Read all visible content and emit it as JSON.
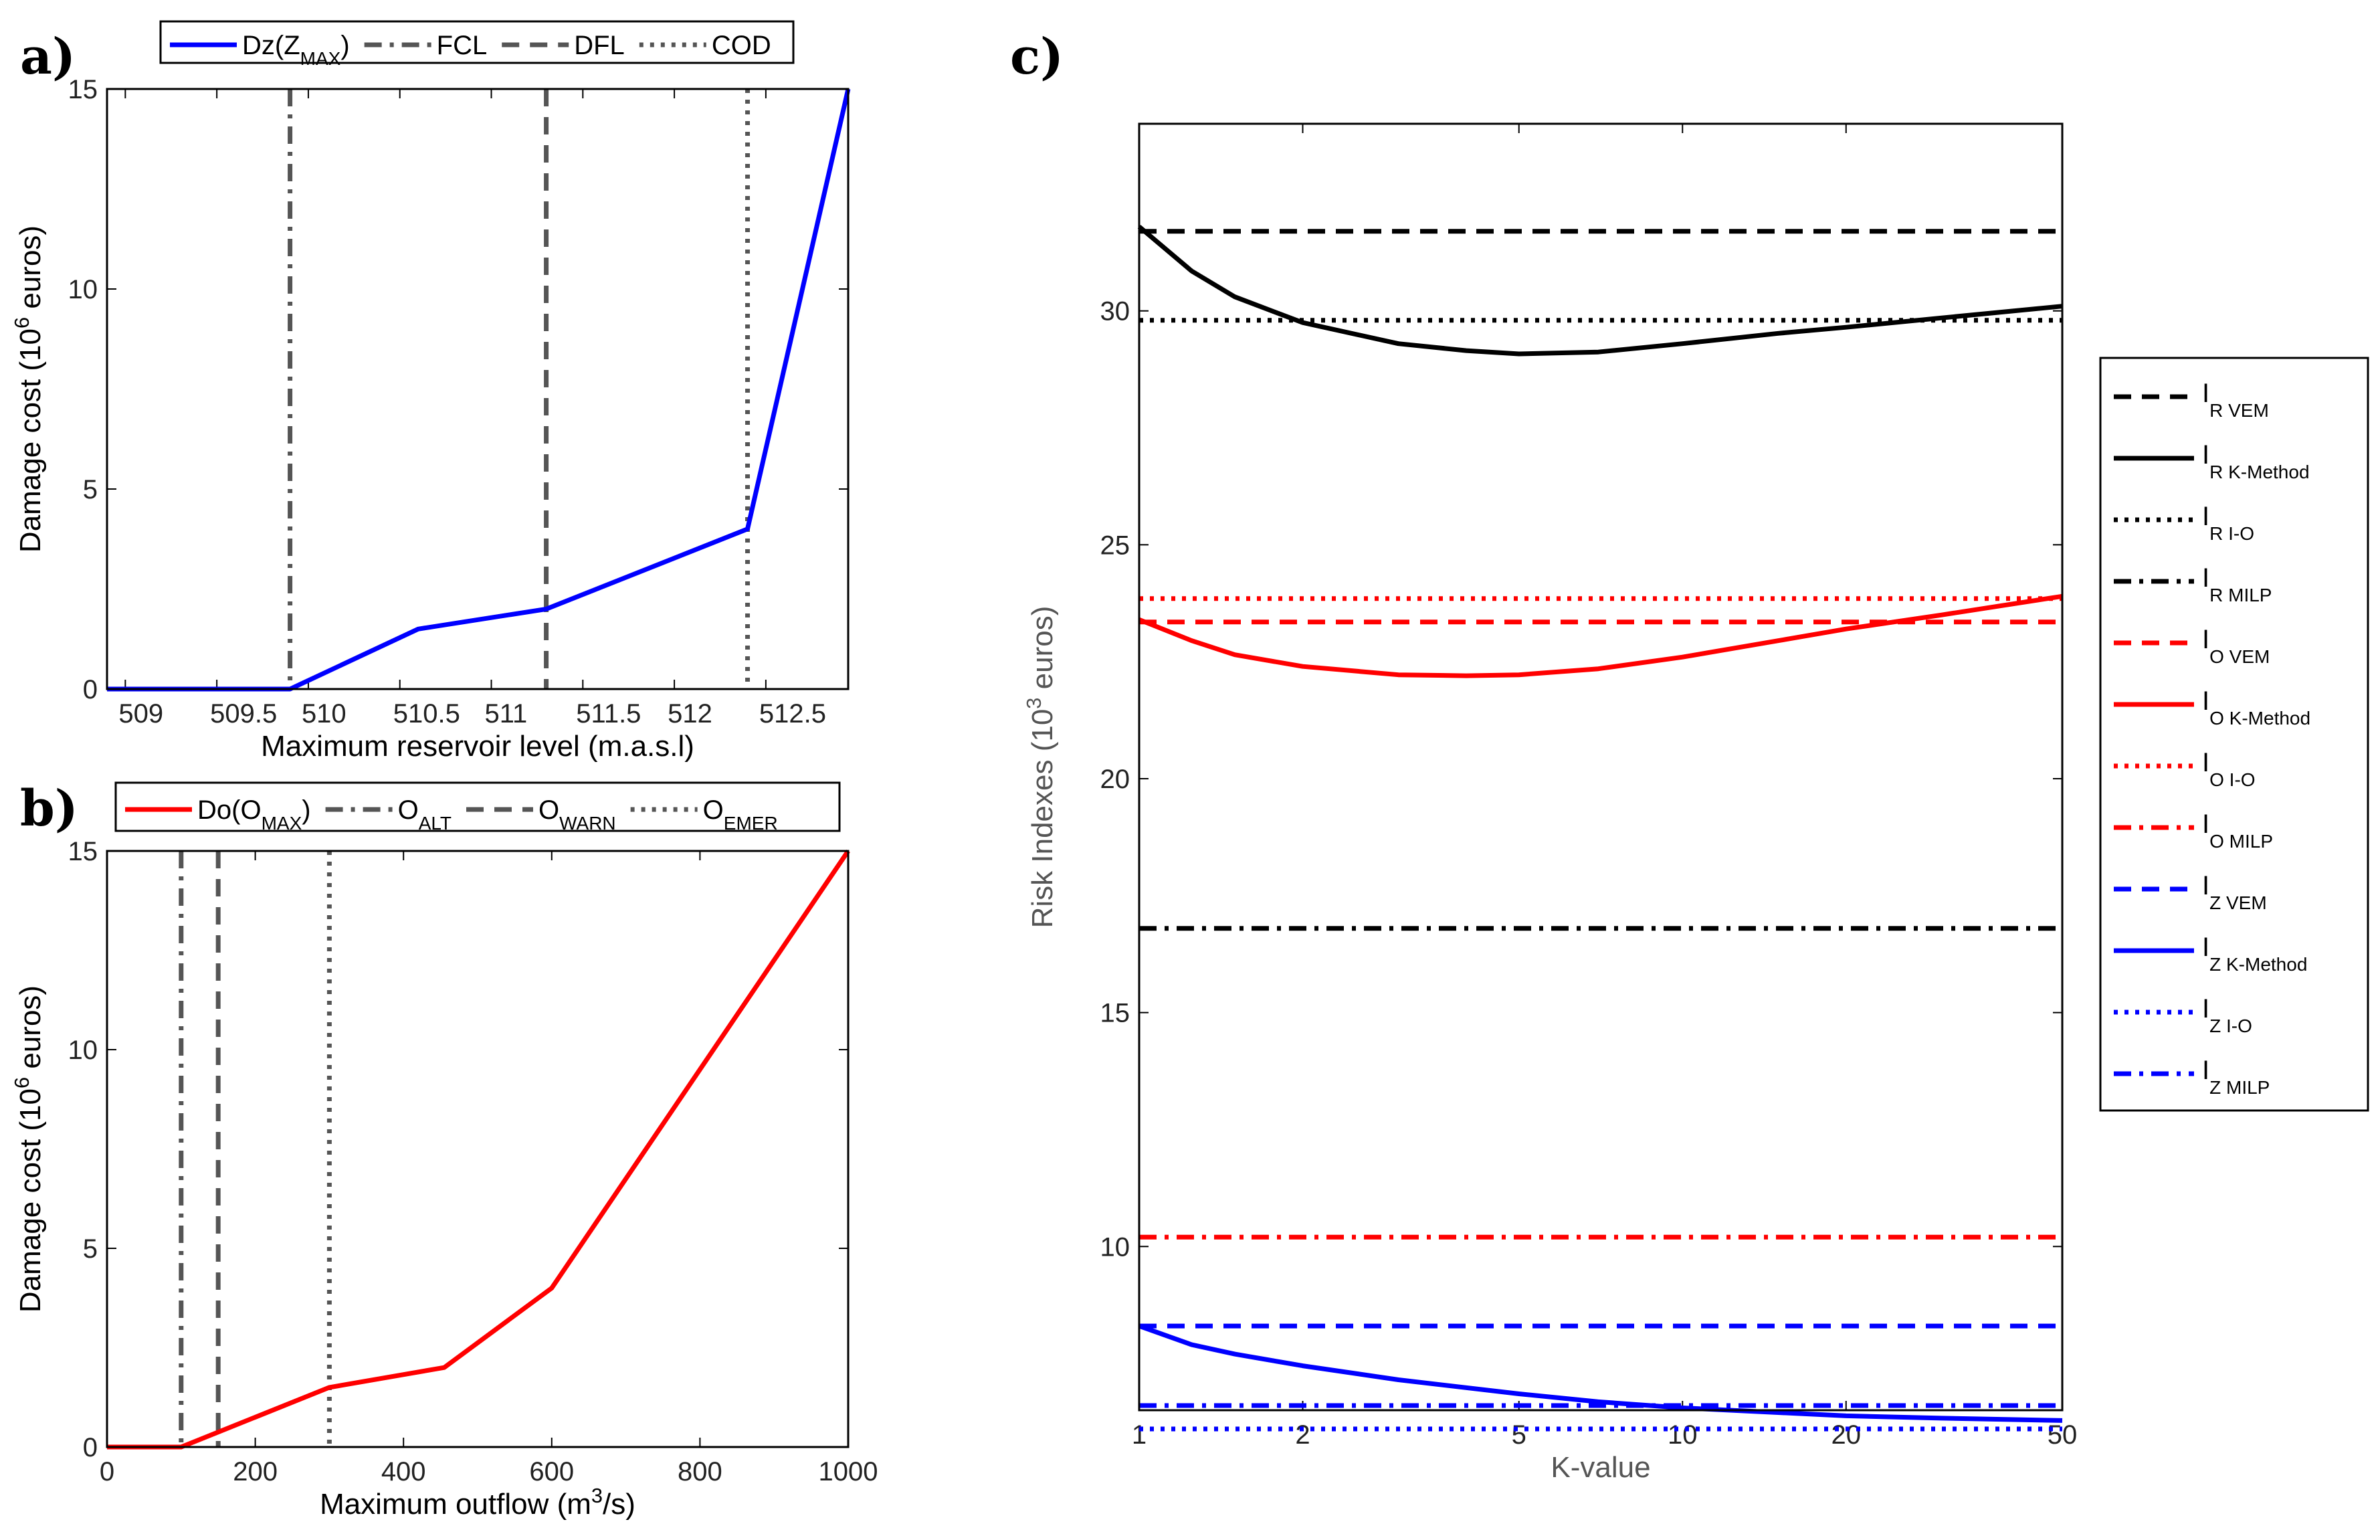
{
  "chart_data": [
    {
      "panel": "a)",
      "type": "line",
      "xlabel": "Maximum reservoir level (m.a.s.l)",
      "ylabel": {
        "text": "Damage cost (10",
        "sup": "6",
        "rest": " euros)"
      },
      "xlim": [
        508.9,
        512.95
      ],
      "ylim": [
        0,
        15
      ],
      "xticks": [
        509,
        509.5,
        510,
        510.5,
        511,
        511.5,
        512,
        512.5
      ],
      "yticks": [
        0,
        5,
        10,
        15
      ],
      "series": [
        {
          "name": "Dz(Z",
          "sub": "MAX",
          "name_end": ")",
          "color": "#0000ff",
          "dash": "solid",
          "x": [
            508.9,
            509.9,
            510.6,
            511.3,
            512.4,
            512.95
          ],
          "y": [
            0,
            0,
            1.5,
            2,
            4,
            15
          ]
        }
      ],
      "vlines": [
        {
          "name": "FCL",
          "x": 509.9,
          "dash": "dashdot",
          "color": "#555555"
        },
        {
          "name": "DFL",
          "x": 511.3,
          "dash": "dashed",
          "color": "#555555"
        },
        {
          "name": "COD",
          "x": 512.4,
          "dash": "dotted",
          "color": "#555555"
        }
      ],
      "legend_position": "top"
    },
    {
      "panel": "b)",
      "type": "line",
      "xlabel": {
        "text": "Maximum outflow (m",
        "sup": "3",
        "rest": "/s)"
      },
      "ylabel": {
        "text": "Damage cost (10",
        "sup": "6",
        "rest": " euros)"
      },
      "xlim": [
        0,
        1000
      ],
      "ylim": [
        0,
        15
      ],
      "xticks": [
        0,
        200,
        400,
        600,
        800,
        1000
      ],
      "yticks": [
        0,
        5,
        10,
        15
      ],
      "series": [
        {
          "name": "Do(O",
          "sub": "MAX",
          "name_end": ")",
          "color": "#ff0000",
          "dash": "solid",
          "x": [
            0,
            100,
            300,
            455,
            600,
            1000
          ],
          "y": [
            0,
            0,
            1.5,
            2,
            4,
            15
          ]
        }
      ],
      "vlines": [
        {
          "name": "O",
          "sub": "ALT",
          "x": 100,
          "dash": "dashdot",
          "color": "#555555"
        },
        {
          "name": "O",
          "sub": "WARN",
          "x": 150,
          "dash": "dashed",
          "color": "#555555"
        },
        {
          "name": "O",
          "sub": "EMER",
          "x": 300,
          "dash": "dotted",
          "color": "#555555"
        }
      ],
      "legend_position": "top"
    },
    {
      "panel": "c)",
      "type": "line",
      "xlabel": "K-value",
      "ylabel": {
        "text": "Risk Indexes (10",
        "sup": "3",
        "rest": " euros)"
      },
      "xscale": "log",
      "xlim": [
        1,
        50
      ],
      "ylim": [
        6.5,
        34
      ],
      "xticks": [
        1,
        2,
        5,
        10,
        20,
        50
      ],
      "yticks": [
        10,
        15,
        20,
        25,
        30
      ],
      "legend_position": "right",
      "series": [
        {
          "name": "I",
          "sub": "R VEM",
          "color": "#000000",
          "dash": "dashed",
          "x": [
            1,
            50
          ],
          "y": [
            31.7,
            31.7
          ]
        },
        {
          "name": "I",
          "sub": "R K-Method",
          "color": "#000000",
          "dash": "solid",
          "x": [
            1,
            1.25,
            1.5,
            2,
            3,
            4,
            5,
            7,
            10,
            15,
            20,
            30,
            50
          ],
          "y": [
            31.8,
            30.85,
            30.3,
            29.75,
            29.3,
            29.15,
            29.08,
            29.12,
            29.3,
            29.52,
            29.65,
            29.85,
            30.1
          ]
        },
        {
          "name": "I",
          "sub": "R I-O",
          "color": "#000000",
          "dash": "dotted",
          "x": [
            1,
            50
          ],
          "y": [
            29.8,
            29.8
          ]
        },
        {
          "name": "I",
          "sub": "R MILP",
          "color": "#000000",
          "dash": "dashdot",
          "x": [
            1,
            50
          ],
          "y": [
            16.8,
            16.8
          ]
        },
        {
          "name": "I",
          "sub": "O VEM",
          "color": "#ff0000",
          "dash": "dashed",
          "x": [
            1,
            50
          ],
          "y": [
            23.35,
            23.35
          ]
        },
        {
          "name": "I",
          "sub": "O K-Method",
          "color": "#ff0000",
          "dash": "solid",
          "x": [
            1,
            1.25,
            1.5,
            2,
            3,
            4,
            5,
            7,
            10,
            15,
            20,
            30,
            50
          ],
          "y": [
            23.4,
            22.95,
            22.65,
            22.4,
            22.22,
            22.2,
            22.22,
            22.35,
            22.6,
            22.95,
            23.2,
            23.5,
            23.9
          ]
        },
        {
          "name": "I",
          "sub": "O I-O",
          "color": "#ff0000",
          "dash": "dotted",
          "x": [
            1,
            50
          ],
          "y": [
            23.85,
            23.85
          ]
        },
        {
          "name": "I",
          "sub": "O MILP",
          "color": "#ff0000",
          "dash": "dashdot",
          "x": [
            1,
            50
          ],
          "y": [
            10.2,
            10.2
          ]
        },
        {
          "name": "I",
          "sub": "Z VEM",
          "color": "#0000ff",
          "dash": "dashed",
          "x": [
            1,
            50
          ],
          "y": [
            8.3,
            8.3
          ]
        },
        {
          "name": "I",
          "sub": "Z K-Method",
          "color": "#0000ff",
          "dash": "solid",
          "x": [
            1,
            1.25,
            1.5,
            2,
            3,
            5,
            7,
            10,
            15,
            20,
            30,
            50
          ],
          "y": [
            8.3,
            7.9,
            7.7,
            7.45,
            7.15,
            6.85,
            6.68,
            6.55,
            6.45,
            6.38,
            6.33,
            6.28
          ]
        },
        {
          "name": "I",
          "sub": "Z I-O",
          "color": "#0000ff",
          "dash": "dotted",
          "x": [
            1,
            50
          ],
          "y": [
            6.1,
            6.1
          ]
        },
        {
          "name": "I",
          "sub": "Z MILP",
          "color": "#0000ff",
          "dash": "dashdot",
          "x": [
            1,
            50
          ],
          "y": [
            6.6,
            6.6
          ]
        }
      ]
    }
  ]
}
